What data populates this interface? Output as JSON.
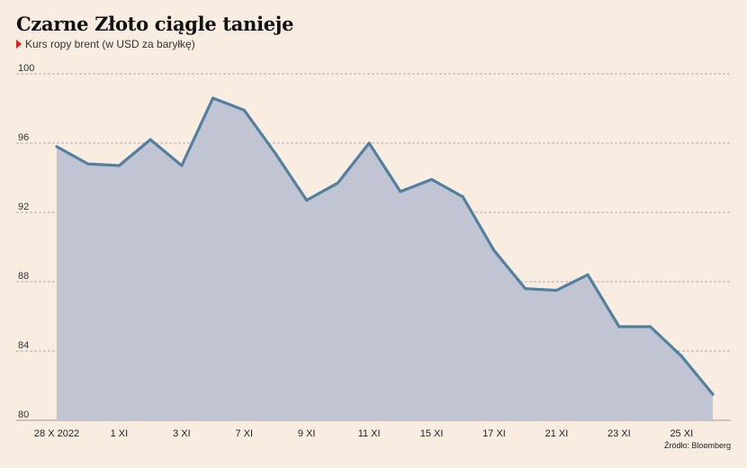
{
  "title": "Czarne Złoto ciągle tanieje",
  "subtitle": "Kurs ropy brent (w USD za baryłkę)",
  "source": "Źródło: Bloomberg",
  "colors": {
    "line": "#52809e",
    "area": "#c1c5d3",
    "marker": "#e3241b",
    "background": "#f9ede1",
    "grid": "#9a9a9a"
  },
  "chart_data": {
    "type": "area",
    "title": "Czarne Złoto ciągle tanieje",
    "subtitle": "Kurs ropy brent (w USD za baryłkę)",
    "xlabel": "",
    "ylabel": "",
    "ylim": [
      80,
      100
    ],
    "yticks": [
      80,
      84,
      88,
      92,
      96,
      100
    ],
    "grid": "horizontal dashed",
    "x": [
      0,
      1,
      2,
      3,
      4,
      5,
      6,
      7,
      8,
      9,
      10,
      11,
      12,
      13,
      14,
      15,
      16,
      17,
      18,
      19,
      20,
      21
    ],
    "xtick_positions": [
      0,
      2,
      4,
      6,
      8,
      10,
      12,
      14,
      16,
      18,
      20
    ],
    "xtick_labels": [
      "28 X 2022",
      "1 XI",
      "3 XI",
      "7 XI",
      "9 XI",
      "11 XI",
      "15 XI",
      "17 XI",
      "21 XI",
      "23 XI",
      "25 XI"
    ],
    "series": [
      {
        "values": [
          95.8,
          94.8,
          94.7,
          96.2,
          94.7,
          98.6,
          97.9,
          95.4,
          92.7,
          93.7,
          96.0,
          93.2,
          93.9,
          92.9,
          89.8,
          87.6,
          87.5,
          88.4,
          85.4,
          85.4,
          83.7,
          81.5
        ]
      }
    ]
  }
}
